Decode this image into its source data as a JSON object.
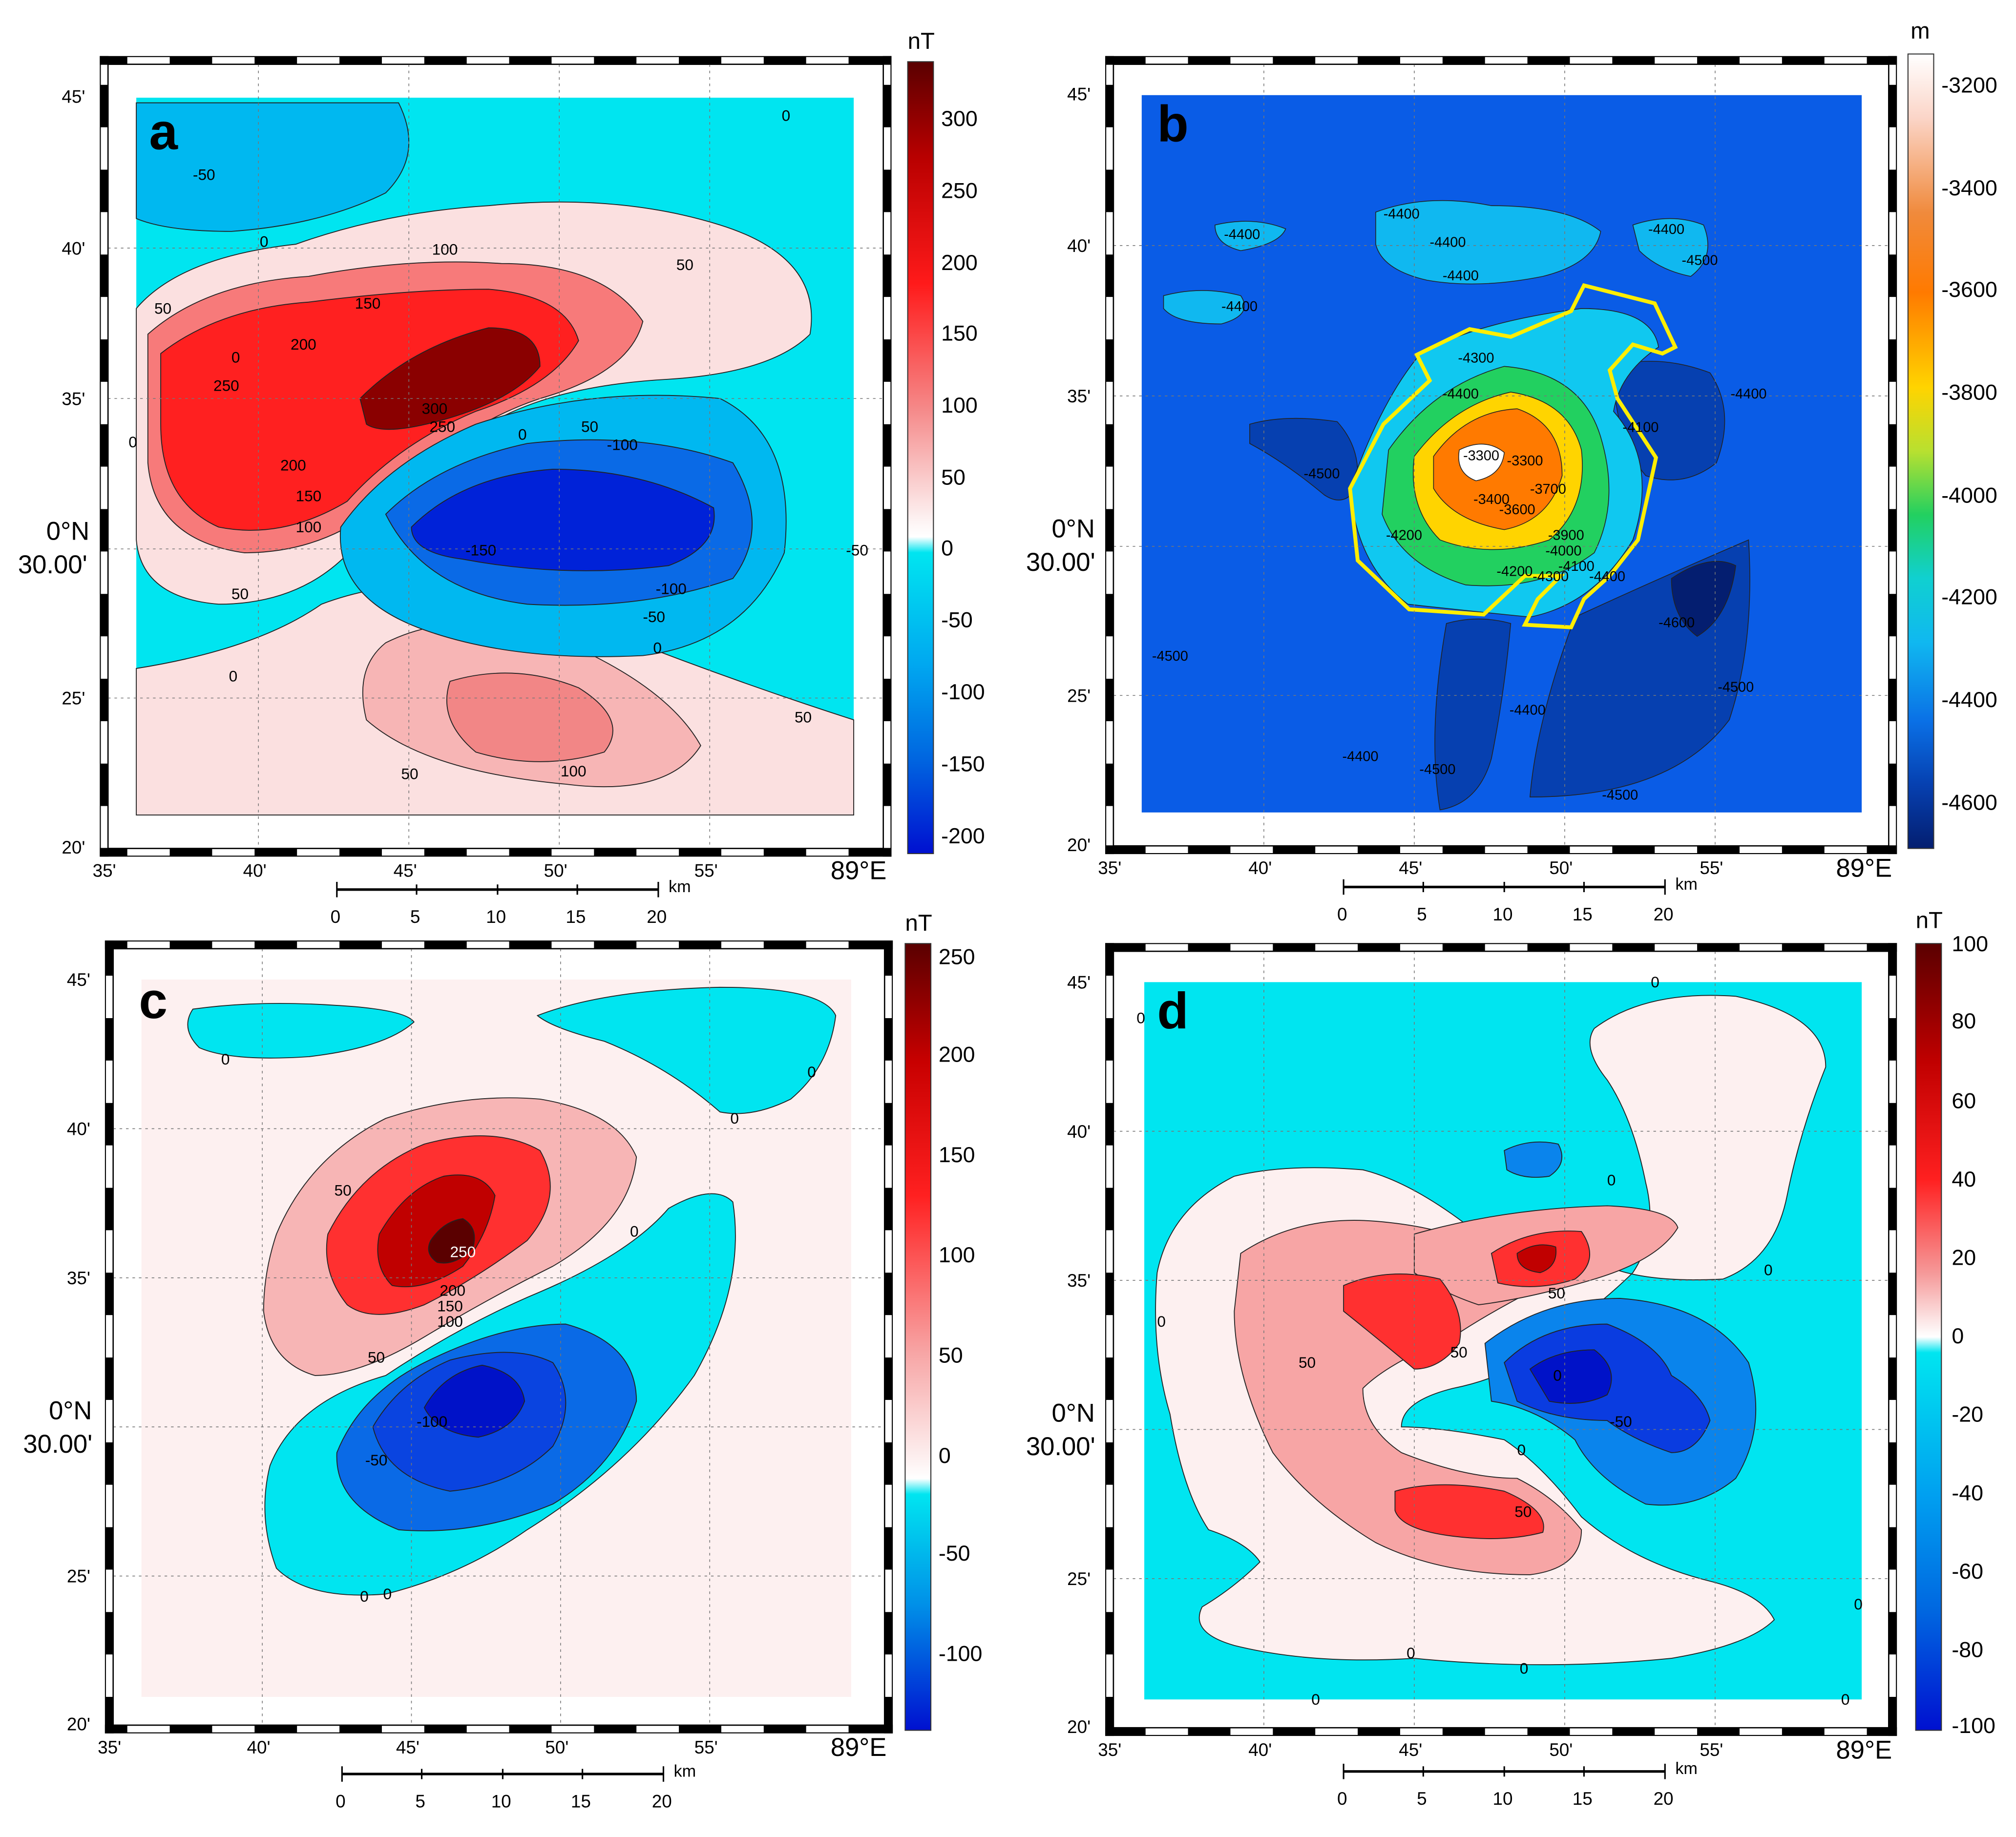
{
  "figure": {
    "shared_axes": {
      "lon_ticks": [
        "35'",
        "40'",
        "45'",
        "50'",
        "55'"
      ],
      "lon_end_label": "89°E",
      "lat_ticks": [
        "45'",
        "40'",
        "35'",
        "25'",
        "20'"
      ],
      "lat_mid_line1": "0°N",
      "lat_mid_line2": "30.00'",
      "scale_ticks": [
        "0",
        "5",
        "10",
        "15",
        "20"
      ],
      "scale_unit": "km"
    },
    "panels": [
      {
        "id": "a",
        "letter": "a",
        "unit": "nT",
        "colorbar_ticks": [
          "300",
          "250",
          "200",
          "150",
          "100",
          "50",
          "0",
          "-50",
          "-100",
          "-150",
          "-200"
        ],
        "colors": {
          "pos_max": "#5a0000",
          "pos_mid": "#ff1a1a",
          "pos_low": "#fbe0e0",
          "zero": "#00e5f0",
          "neg_mid": "#0077e6",
          "neg_max": "#0010d0"
        },
        "contour_labels": [
          "0",
          "0",
          "0",
          "0",
          "-50",
          "50",
          "100",
          "50",
          "150",
          "200",
          "250",
          "300",
          "250",
          "200",
          "150",
          "100",
          "50",
          "0",
          "50",
          "-100",
          "-150",
          "-100",
          "-50",
          "0",
          "50",
          "50",
          "100",
          "-50",
          "0"
        ]
      },
      {
        "id": "b",
        "letter": "b",
        "unit": "m",
        "colorbar_ticks": [
          "-3200",
          "-3400",
          "-3600",
          "-3800",
          "-4000",
          "-4200",
          "-4400",
          "-4600"
        ],
        "colors": {
          "shallow": "#ffffff",
          "orange": "#ff7a00",
          "yellow": "#ffe000",
          "green": "#22d060",
          "cyan": "#10c8f0",
          "blue": "#0a5ce6",
          "deep": "#062f80",
          "outline": "#ffee00"
        },
        "contour_labels": [
          "-4400",
          "-4400",
          "-4400",
          "-4400",
          "-4400",
          "-4500",
          "-4400",
          "-4300",
          "-4400",
          "-4100",
          "-4400",
          "-4500",
          "-3300",
          "-3300",
          "-3400",
          "-3600",
          "-3700",
          "-3900",
          "-4000",
          "-4100",
          "-4200",
          "-4200",
          "-4300",
          "-4400",
          "-4600",
          "-4500",
          "-4500",
          "-4400",
          "-4500",
          "-4400",
          "-4500"
        ]
      },
      {
        "id": "c",
        "letter": "c",
        "unit": "nT",
        "colorbar_ticks": [
          "250",
          "200",
          "150",
          "100",
          "50",
          "0",
          "-50",
          "-100"
        ],
        "colors": {
          "pos_max": "#5a0000",
          "pos_mid": "#ff1a1a",
          "pos_low": "#fbe0e0",
          "zero": "#00e5f0",
          "neg_mid": "#0077e6",
          "neg_max": "#0010d0"
        },
        "contour_labels": [
          "0",
          "0",
          "0",
          "50",
          "250",
          "200",
          "150",
          "100",
          "50",
          "0",
          "-100",
          "-50",
          "0",
          "0"
        ]
      },
      {
        "id": "d",
        "letter": "d",
        "unit": "nT",
        "colorbar_ticks": [
          "100",
          "80",
          "60",
          "40",
          "20",
          "0",
          "-20",
          "-40",
          "-60",
          "-80",
          "-100"
        ],
        "colors": {
          "pos_max": "#5a0000",
          "pos_mid": "#ff1a1a",
          "pos_low": "#fbe0e0",
          "zero": "#00e5f0",
          "neg_mid": "#0077e6",
          "neg_max": "#0010d0"
        },
        "contour_labels": [
          "0",
          "0",
          "0",
          "0",
          "0",
          "50",
          "50",
          "50",
          "-50",
          "50",
          "0",
          "0",
          "0",
          "0",
          "0",
          "0",
          "0"
        ]
      }
    ]
  }
}
